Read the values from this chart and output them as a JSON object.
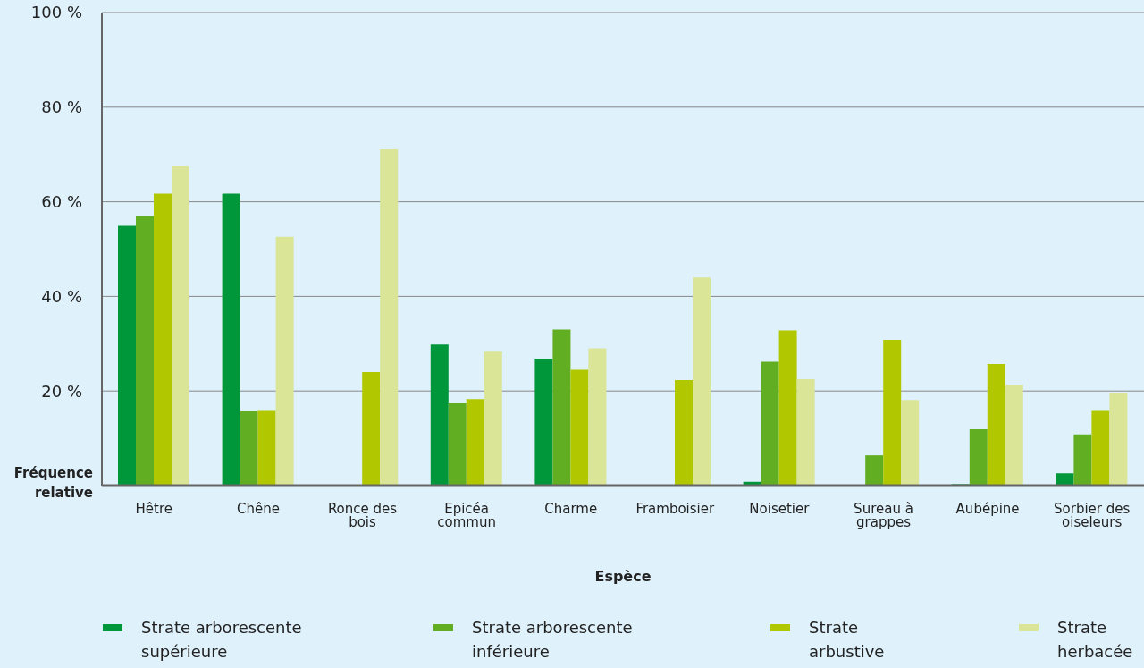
{
  "chart_data": {
    "type": "bar",
    "xlabel": "Espèce",
    "ylabel": "Fréquence relative",
    "categories": [
      "Hêtre",
      "Chêne",
      "Ronce des bois",
      "Epicéa commun",
      "Charme",
      "Framboisier",
      "Noisetier",
      "Sureau à grappes",
      "Aubépine",
      "Sorbier des oiseleurs"
    ],
    "series": [
      {
        "name": "Strate arborescente supérieure",
        "color": "#00963a",
        "values": [
          54.9,
          61.7,
          null,
          29.8,
          26.8,
          null,
          0.8,
          null,
          0.3,
          2.6
        ]
      },
      {
        "name": "Strate arborescente inférieure",
        "color": "#62ae22",
        "values": [
          57,
          15.7,
          null,
          17.4,
          33,
          null,
          26.2,
          6.4,
          11.9,
          10.8
        ]
      },
      {
        "name": "Strate arbustive",
        "color": "#b1c800",
        "values": [
          61.7,
          15.8,
          24,
          18.3,
          24.5,
          22.3,
          32.8,
          30.8,
          25.7,
          15.8
        ]
      },
      {
        "name": "Strate herbacée",
        "color": "#dae597",
        "values": [
          67.5,
          52.6,
          71.1,
          28.3,
          29,
          44,
          22.5,
          18.1,
          21.3,
          19.6
        ]
      }
    ],
    "ylim": [
      0,
      100
    ],
    "yticks": [
      {
        "value": 20,
        "label": "20 %"
      },
      {
        "value": 40,
        "label": "40 %"
      },
      {
        "value": 60,
        "label": "60 %"
      },
      {
        "value": 80,
        "label": "80 %"
      },
      {
        "value": 100,
        "label": "100 %"
      }
    ],
    "grid": "y",
    "legend": "bottom"
  }
}
